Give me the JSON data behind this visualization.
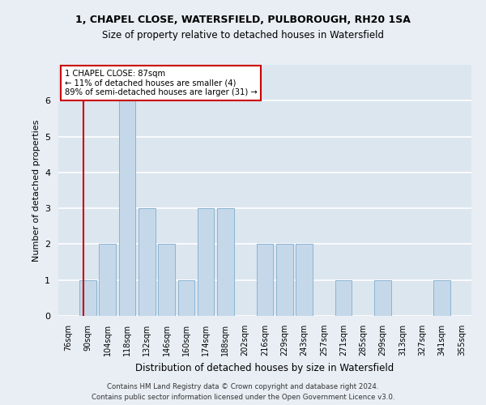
{
  "title_line1": "1, CHAPEL CLOSE, WATERSFIELD, PULBOROUGH, RH20 1SA",
  "title_line2": "Size of property relative to detached houses in Watersfield",
  "xlabel": "Distribution of detached houses by size in Watersfield",
  "ylabel": "Number of detached properties",
  "categories": [
    "76sqm",
    "90sqm",
    "104sqm",
    "118sqm",
    "132sqm",
    "146sqm",
    "160sqm",
    "174sqm",
    "188sqm",
    "202sqm",
    "216sqm",
    "229sqm",
    "243sqm",
    "257sqm",
    "271sqm",
    "285sqm",
    "299sqm",
    "313sqm",
    "327sqm",
    "341sqm",
    "355sqm"
  ],
  "values": [
    0,
    1,
    2,
    6,
    3,
    2,
    1,
    3,
    3,
    0,
    2,
    2,
    2,
    0,
    1,
    0,
    1,
    0,
    0,
    1,
    0
  ],
  "bar_color": "#c5d8ea",
  "bar_edge_color": "#8ab4d0",
  "highlight_color": "#cc0000",
  "annotation_line1": "1 CHAPEL CLOSE: 87sqm",
  "annotation_line2": "← 11% of detached houses are smaller (4)",
  "annotation_line3": "89% of semi-detached houses are larger (31) →",
  "annotation_box_color": "#cc0000",
  "ylim": [
    0,
    7
  ],
  "yticks": [
    0,
    1,
    2,
    3,
    4,
    5,
    6
  ],
  "footer_line1": "Contains HM Land Registry data © Crown copyright and database right 2024.",
  "footer_line2": "Contains public sector information licensed under the Open Government Licence v3.0.",
  "bg_color": "#e8eef4",
  "plot_bg_color": "#dce6ef"
}
